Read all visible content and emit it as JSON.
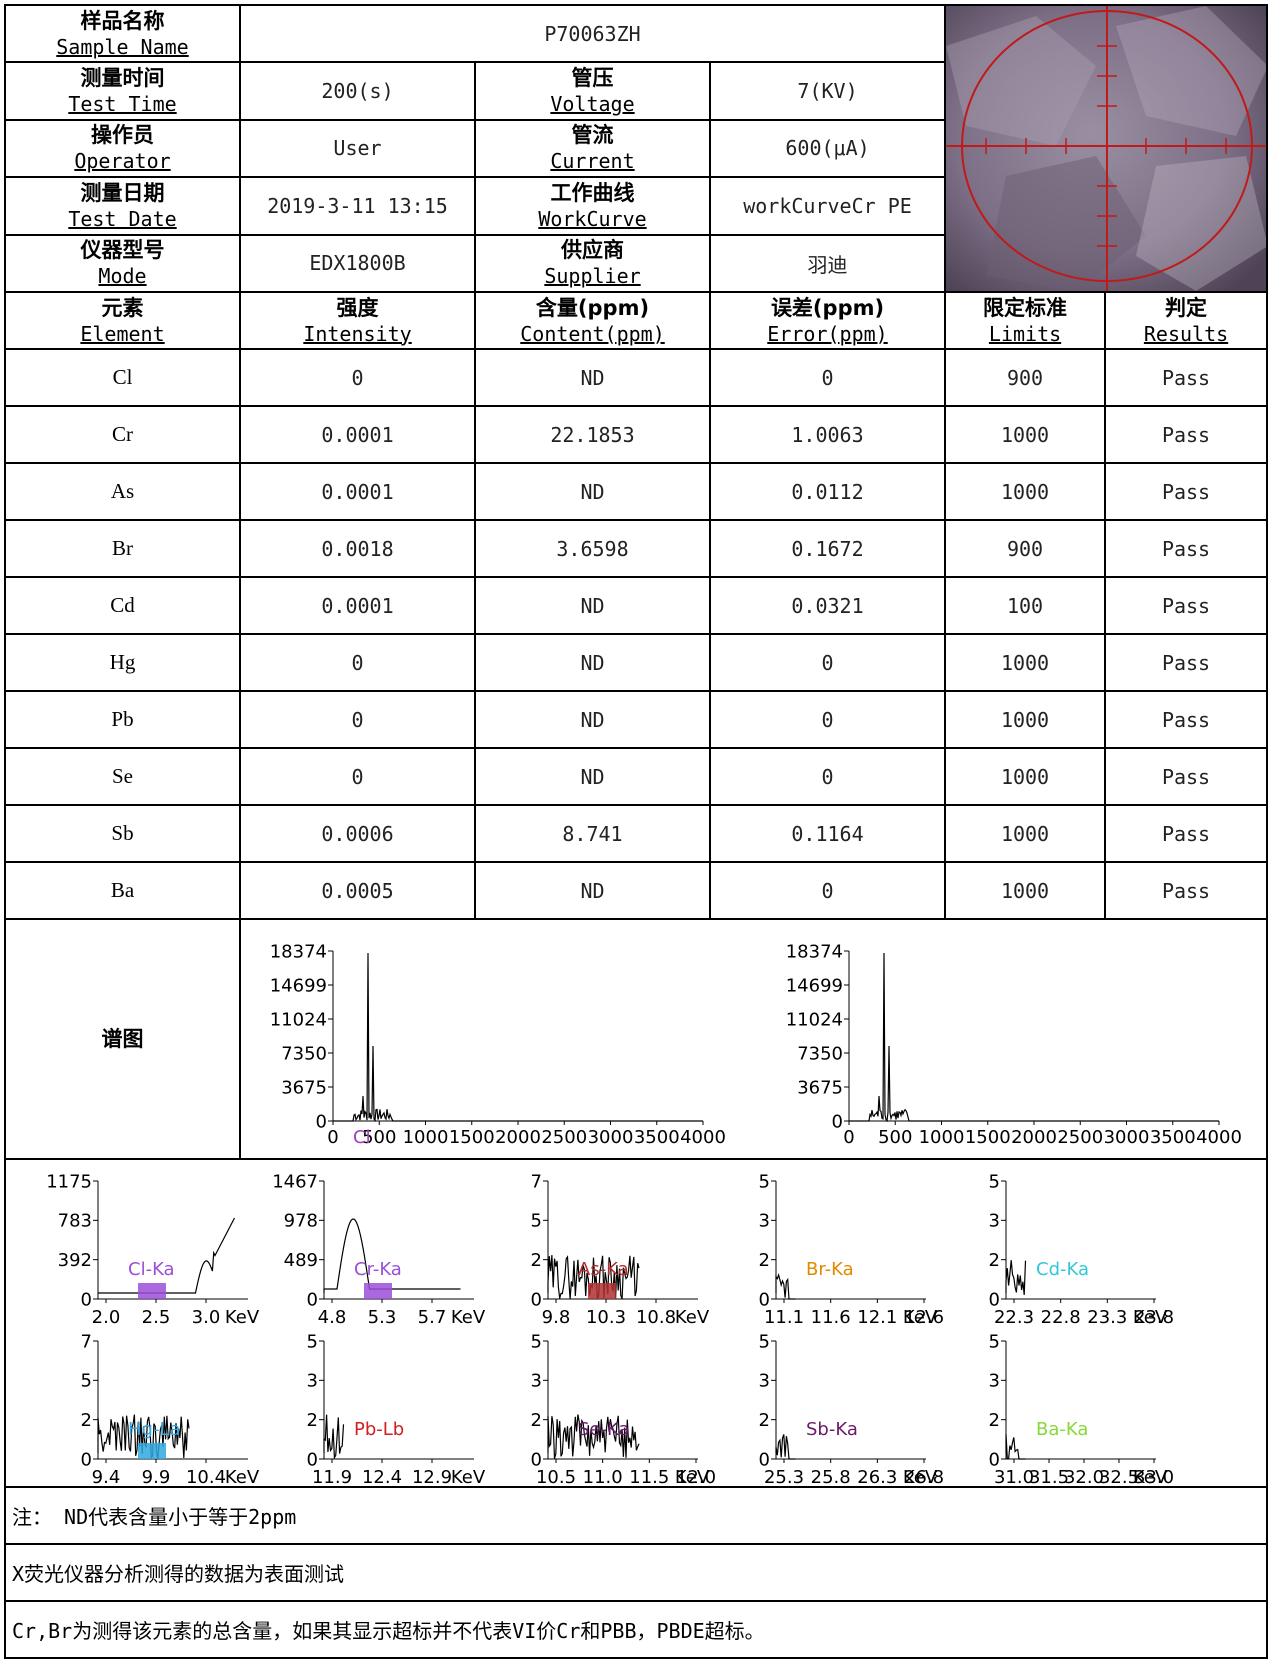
{
  "info": {
    "sample_name": {
      "zh": "样品名称",
      "en": "Sample Name",
      "value": "P70063ZH"
    },
    "test_time": {
      "zh": "测量时间",
      "en": "Test Time",
      "value": "200(s)"
    },
    "voltage": {
      "zh": "管压",
      "en": "Voltage",
      "value": "7(KV)"
    },
    "operator": {
      "zh": "操作员",
      "en": "Operator",
      "value": "User"
    },
    "current": {
      "zh": "管流",
      "en": "Current",
      "value": "600(μA)"
    },
    "test_date": {
      "zh": "测量日期",
      "en": "Test Date",
      "value": "2019-3-11 13:15"
    },
    "workcurve": {
      "zh": "工作曲线",
      "en": "WorkCurve",
      "value": "workCurveCr PE"
    },
    "mode": {
      "zh": "仪器型号",
      "en": "Mode",
      "value": "EDX1800B"
    },
    "supplier": {
      "zh": "供应商",
      "en": "Supplier",
      "value": "羽迪"
    }
  },
  "columns": [
    {
      "zh": "元素",
      "en": "Element"
    },
    {
      "zh": "强度",
      "en": "Intensity"
    },
    {
      "zh": "含量(ppm)",
      "en": "Content(ppm)"
    },
    {
      "zh": "误差(ppm)",
      "en": "Error(ppm)"
    },
    {
      "zh": "限定标准",
      "en": "Limits"
    },
    {
      "zh": "判定",
      "en": "Results"
    }
  ],
  "rows": [
    [
      "Cl",
      "0",
      "ND",
      "0",
      "900",
      "Pass"
    ],
    [
      "Cr",
      "0.0001",
      "22.1853",
      "1.0063",
      "1000",
      "Pass"
    ],
    [
      "As",
      "0.0001",
      "ND",
      "0.0112",
      "1000",
      "Pass"
    ],
    [
      "Br",
      "0.0018",
      "3.6598",
      "0.1672",
      "900",
      "Pass"
    ],
    [
      "Cd",
      "0.0001",
      "ND",
      "0.0321",
      "100",
      "Pass"
    ],
    [
      "Hg",
      "0",
      "ND",
      "0",
      "1000",
      "Pass"
    ],
    [
      "Pb",
      "0",
      "ND",
      "0",
      "1000",
      "Pass"
    ],
    [
      "Se",
      "0",
      "ND",
      "0",
      "1000",
      "Pass"
    ],
    [
      "Sb",
      "0.0006",
      "8.741",
      "0.1164",
      "1000",
      "Pass"
    ],
    [
      "Ba",
      "0.0005",
      "ND",
      "0",
      "1000",
      "Pass"
    ]
  ],
  "spectrum_label": "谱图",
  "chart_data": [
    {
      "type": "line",
      "y_ticks": [
        "18374",
        "14699",
        "11024",
        "7350",
        "3675",
        "0"
      ],
      "x_ticks": [
        "0",
        "500",
        "1000",
        "1500",
        "2000",
        "2500",
        "3000",
        "3500",
        "4000"
      ],
      "markers": [
        {
          "label": "Cl",
          "color": "#a040c0"
        }
      ]
    },
    {
      "type": "line",
      "y_ticks": [
        "18374",
        "14699",
        "11024",
        "7350",
        "3675",
        "0"
      ],
      "x_ticks": [
        "0",
        "500",
        "1000",
        "1500",
        "2000",
        "2500",
        "3000",
        "3500",
        "4000"
      ]
    },
    {
      "type": "line",
      "label": "Cl-Ka",
      "color": "#9b4fd8",
      "y_ticks": [
        "1175",
        "783",
        "392",
        "0"
      ],
      "x_ticks": [
        "2.0",
        "2.5",
        "3.0"
      ],
      "unit": "KeV"
    },
    {
      "type": "line",
      "label": "Cr-Ka",
      "color": "#9b4fd8",
      "y_ticks": [
        "1467",
        "978",
        "489",
        "0"
      ],
      "x_ticks": [
        "4.8",
        "5.3",
        "5.7"
      ],
      "unit": "KeV"
    },
    {
      "type": "line",
      "label": "As-Ka",
      "color": "#b03030",
      "y_ticks": [
        "7",
        "5",
        "2",
        "0"
      ],
      "x_ticks": [
        "9.8",
        "10.3",
        "10.8"
      ],
      "unit": "KeV"
    },
    {
      "type": "line",
      "label": "Br-Ka",
      "color": "#e08a00",
      "y_ticks": [
        "5",
        "3",
        "2",
        "0"
      ],
      "x_ticks": [
        "11.1",
        "11.6",
        "12.1",
        "12.6"
      ],
      "unit": "KeV"
    },
    {
      "type": "line",
      "label": "Cd-Ka",
      "color": "#30c8d8",
      "y_ticks": [
        "5",
        "3",
        "2",
        "0"
      ],
      "x_ticks": [
        "22.3",
        "22.8",
        "23.3",
        "23.8"
      ],
      "unit": "KeV"
    },
    {
      "type": "line",
      "label": "Hg-La",
      "color": "#30a8e0",
      "y_ticks": [
        "7",
        "5",
        "2",
        "0"
      ],
      "x_ticks": [
        "9.4",
        "9.9",
        "10.4"
      ],
      "unit": "KeV"
    },
    {
      "type": "line",
      "label": "Pb-Lb",
      "color": "#d02020",
      "y_ticks": [
        "5",
        "3",
        "2",
        "0"
      ],
      "x_ticks": [
        "11.9",
        "12.4",
        "12.9"
      ],
      "unit": "KeV"
    },
    {
      "type": "line",
      "label": "Se-Ka",
      "color": "#6a1a6a",
      "y_ticks": [
        "5",
        "3",
        "2",
        "0"
      ],
      "x_ticks": [
        "10.5",
        "11.0",
        "11.5",
        "12.0"
      ],
      "unit": "KeV"
    },
    {
      "type": "line",
      "label": "Sb-Ka",
      "color": "#6a1a6a",
      "y_ticks": [
        "5",
        "3",
        "2",
        "0"
      ],
      "x_ticks": [
        "25.3",
        "25.8",
        "26.3",
        "26.8"
      ],
      "unit": "KeV"
    },
    {
      "type": "line",
      "label": "Ba-Ka",
      "color": "#88d838",
      "y_ticks": [
        "5",
        "3",
        "2",
        "0"
      ],
      "x_ticks": [
        "31.0",
        "31.5",
        "32.0",
        "32.5",
        "33.0"
      ],
      "unit": "KeV"
    }
  ],
  "notes": [
    "注： ND代表含量小于等于2ppm",
    "X荧光仪器分析测得的数据为表面测试",
    "Cr,Br为测得该元素的总含量，如果其显示超标并不代表VI价Cr和PBB，PBDE超标。"
  ]
}
